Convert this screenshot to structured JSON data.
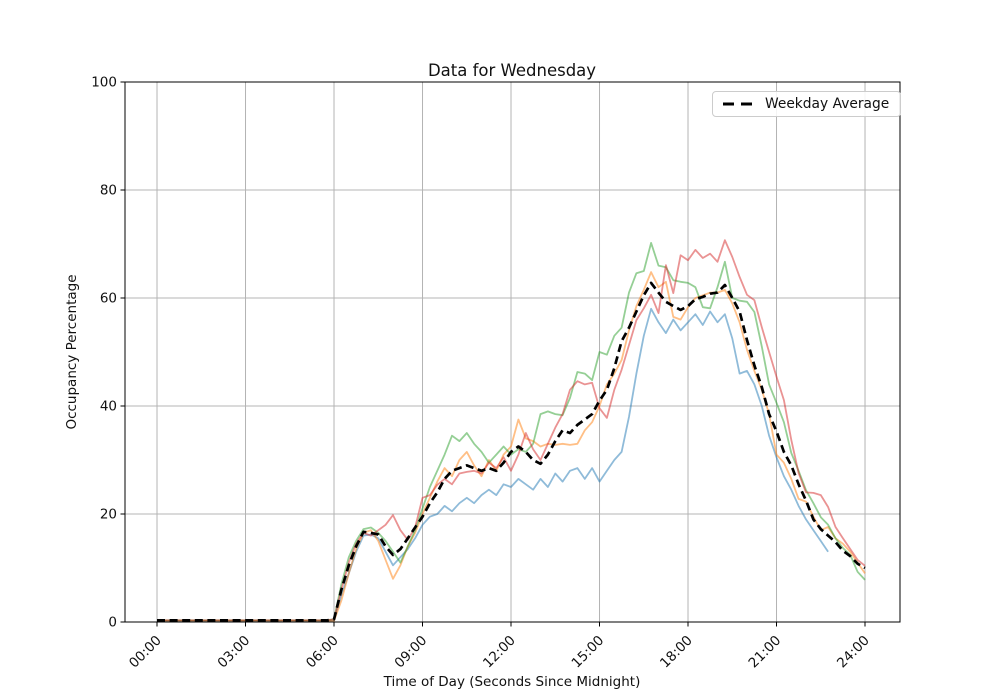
{
  "figure": {
    "background": "#ffffff"
  },
  "chart_data": {
    "type": "line",
    "title": "Data for Wednesday",
    "xlabel": "Time of Day (Seconds Since Midnight)",
    "ylabel": "Occupancy Percentage",
    "ylim": [
      0,
      100
    ],
    "xlim_hours": [
      -1.085,
      25.186
    ],
    "grid": true,
    "grid_color": "#b4b4b4",
    "axis_color": "#000000",
    "text_color": "#111111",
    "x_tick_hours": [
      0,
      3,
      6,
      9,
      12,
      15,
      18,
      21,
      24
    ],
    "x_tick_labels": [
      "00:00",
      "03:00",
      "06:00",
      "09:00",
      "12:00",
      "15:00",
      "18:00",
      "21:00",
      "24:00"
    ],
    "y_ticks": [
      0,
      20,
      40,
      60,
      80,
      100
    ],
    "x_start_hour": 0,
    "x_step_hours": 0.25,
    "legend": {
      "label": "Weekday Average",
      "position": "top-right"
    },
    "series": [
      {
        "name": "day-line-blue",
        "color": "#1f77b4",
        "opacity": 0.5,
        "width": 1.8,
        "dash": null,
        "values": [
          0.3,
          0.3,
          0.3,
          0.3,
          0.3,
          0.3,
          0.3,
          0.3,
          0.3,
          0.3,
          0.3,
          0.3,
          0.3,
          0.3,
          0.3,
          0.3,
          0.3,
          0.3,
          0.3,
          0.3,
          0.3,
          0.3,
          0.3,
          0.3,
          0.3,
          5,
          9,
          13,
          16,
          16.2,
          15.5,
          13,
          10.5,
          12,
          13.5,
          15.5,
          18,
          19.5,
          20,
          21.5,
          20.5,
          22,
          23,
          22,
          23.5,
          24.5,
          23.5,
          25.5,
          25,
          26.5,
          25.5,
          24.5,
          26.5,
          25,
          27.5,
          26,
          28,
          28.5,
          26.5,
          28.5,
          26,
          28,
          30,
          31.5,
          38,
          46,
          53,
          58,
          55.5,
          53.5,
          56,
          54,
          55.5,
          57,
          55,
          57.5,
          55.5,
          57,
          52.5,
          46,
          46.5,
          44,
          40,
          34.5,
          30.5,
          27,
          24.5,
          21.5,
          19,
          17,
          15,
          13,
          null,
          null,
          null,
          null,
          null
        ]
      },
      {
        "name": "day-line-orange",
        "color": "#ff7f0e",
        "opacity": 0.5,
        "width": 1.8,
        "dash": null,
        "values": [
          0.3,
          0.3,
          0.3,
          0.3,
          0.3,
          0.3,
          0.3,
          0.3,
          0.3,
          0.3,
          0.3,
          0.3,
          0.3,
          0.3,
          0.3,
          0.3,
          0.3,
          0.3,
          0.3,
          0.3,
          0.3,
          0.3,
          0.3,
          0.3,
          0.2,
          4,
          9,
          13.5,
          16.5,
          17,
          15,
          11.5,
          8,
          10.5,
          14,
          16.5,
          20,
          23,
          26,
          28.5,
          27,
          30,
          31.5,
          29,
          27,
          30,
          28,
          31,
          32.5,
          37.5,
          34,
          33.5,
          32.5,
          33,
          32.8,
          33,
          32.8,
          33,
          35.5,
          37,
          40,
          44,
          46,
          48.5,
          54,
          58.5,
          61.5,
          64.8,
          62,
          63,
          56.5,
          56,
          58.3,
          60,
          60.5,
          61,
          61,
          61.5,
          59,
          55.5,
          50.4,
          46.5,
          43,
          38.5,
          31,
          29.5,
          26.5,
          22.8,
          22.3,
          19.5,
          17,
          17.6,
          15.5,
          14.5,
          13,
          11,
          9
        ]
      },
      {
        "name": "day-line-green",
        "color": "#2ca02c",
        "opacity": 0.5,
        "width": 1.8,
        "dash": null,
        "values": [
          0.3,
          0.3,
          0.3,
          0.3,
          0.3,
          0.3,
          0.3,
          0.3,
          0.3,
          0.3,
          0.3,
          0.3,
          0.3,
          0.3,
          0.3,
          0.3,
          0.3,
          0.3,
          0.3,
          0.3,
          0.3,
          0.3,
          0.3,
          0.3,
          0.5,
          7,
          12,
          15,
          17.2,
          17.5,
          16.5,
          15,
          13,
          11,
          14,
          17,
          21,
          25,
          28,
          31,
          34.5,
          33.5,
          35,
          33,
          31.5,
          29.5,
          31,
          32.5,
          31,
          32,
          31.5,
          33,
          38.5,
          39,
          38.5,
          38.3,
          41.5,
          46.3,
          46,
          44.8,
          50,
          49.5,
          53,
          54.5,
          61,
          64.6,
          65,
          70.2,
          66,
          65.7,
          63.3,
          63,
          62.8,
          62,
          58.3,
          58.1,
          62,
          66.7,
          60,
          59.5,
          59.3,
          57.4,
          51,
          44,
          40.6,
          37,
          31.3,
          28,
          24.4,
          22,
          19.4,
          18,
          15.5,
          13.7,
          12.4,
          9.3,
          7.8
        ]
      },
      {
        "name": "day-line-red",
        "color": "#d62728",
        "opacity": 0.5,
        "width": 1.8,
        "dash": null,
        "values": [
          0.3,
          0.3,
          0.3,
          0.3,
          0.3,
          0.3,
          0.3,
          0.3,
          0.3,
          0.3,
          0.3,
          0.3,
          0.3,
          0.3,
          0.3,
          0.3,
          0.3,
          0.3,
          0.3,
          0.3,
          0.3,
          0.3,
          0.3,
          0.3,
          0.5,
          6,
          11,
          14.5,
          16.5,
          16,
          17,
          18,
          19.8,
          17,
          15.2,
          17.5,
          23,
          23.5,
          25.4,
          26.5,
          25.5,
          27.5,
          27.8,
          28,
          27.5,
          29.5,
          28.5,
          30.5,
          28,
          31,
          35,
          32,
          30,
          33,
          36,
          38.5,
          43,
          44.6,
          44,
          44.3,
          39.6,
          37.8,
          43,
          46.7,
          51.3,
          55.9,
          58.1,
          60.6,
          57.2,
          66.1,
          60.9,
          67.9,
          67,
          68.9,
          67.4,
          68.2,
          66.7,
          70.7,
          67.6,
          63.9,
          60.6,
          59.6,
          54.6,
          50,
          45.4,
          41.1,
          33.7,
          27.6,
          24,
          23.9,
          23.5,
          21.3,
          17.6,
          15.5,
          13.5,
          11.5,
          10.4
        ]
      },
      {
        "name": "weekday-average",
        "label": "Weekday Average",
        "color": "#000000",
        "opacity": 1,
        "width": 2.7,
        "dash": "8 4.6",
        "in_legend": true,
        "values": [
          0.3,
          0.3,
          0.3,
          0.3,
          0.3,
          0.3,
          0.3,
          0.3,
          0.3,
          0.3,
          0.3,
          0.3,
          0.3,
          0.3,
          0.3,
          0.3,
          0.3,
          0.3,
          0.3,
          0.3,
          0.3,
          0.3,
          0.3,
          0.3,
          0.5,
          6,
          10.5,
          14,
          16.7,
          16.5,
          16.2,
          14,
          12.4,
          13.5,
          15.5,
          17.5,
          19.5,
          22,
          24,
          26.5,
          28,
          28.5,
          29,
          28.5,
          28,
          28.5,
          28,
          29.5,
          31.5,
          32.5,
          31.5,
          30,
          29.3,
          31,
          33.5,
          35.5,
          35,
          36.5,
          37.5,
          38.5,
          41,
          43,
          47,
          52,
          54.5,
          57.5,
          60.5,
          62.8,
          61,
          59.3,
          58.5,
          57.8,
          58.5,
          59.8,
          60.2,
          60.8,
          61,
          62.4,
          60,
          57.5,
          52.2,
          47.5,
          43.5,
          38.5,
          35.3,
          31.5,
          29,
          25.5,
          22.5,
          19,
          17.2,
          16,
          14.8,
          13.2,
          12.2,
          10.8,
          10
        ]
      }
    ]
  }
}
